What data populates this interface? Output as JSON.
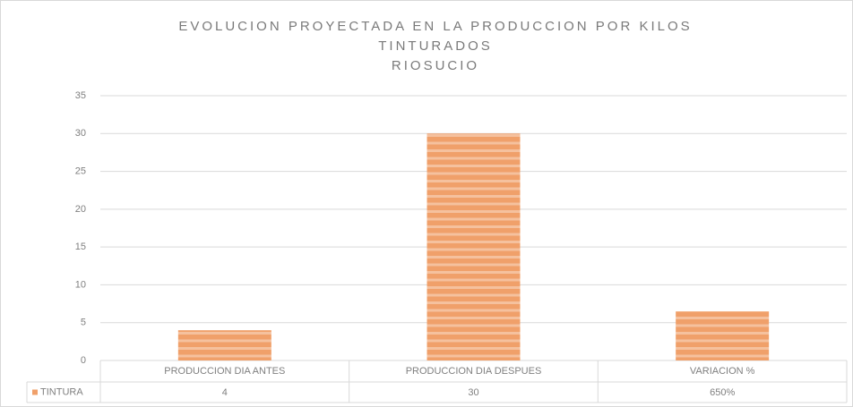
{
  "chart_data": {
    "type": "bar",
    "title": [
      "EVOLUCION PROYECTADA EN LA PRODUCCION POR KILOS",
      "TINTURADOS",
      "RIOSUCIO"
    ],
    "categories": [
      "PRODUCCION DIA ANTES",
      "PRODUCCION DIA DESPUES",
      "VARIACION %"
    ],
    "series": [
      {
        "name": "TINTURA",
        "color": "#f0a06a",
        "values": [
          4,
          30,
          6.5
        ],
        "value_labels": [
          "4",
          "30",
          "650%"
        ]
      }
    ],
    "ylim": [
      0,
      35
    ],
    "yticks": [
      0,
      5,
      10,
      15,
      20,
      25,
      30,
      35
    ],
    "grid": true,
    "data_table": true
  }
}
